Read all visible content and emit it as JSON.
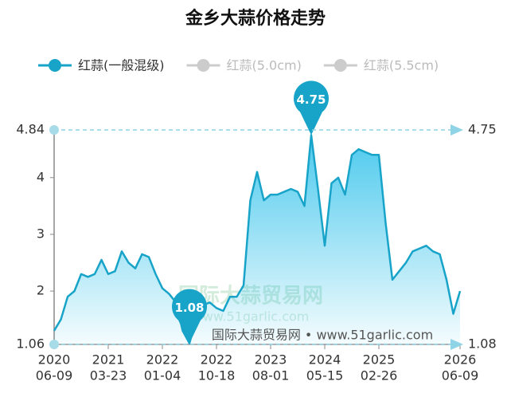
{
  "chart_data": {
    "type": "line",
    "title": "金乡大蒜价格走势",
    "categories": [
      [
        "2020",
        "06-09"
      ],
      null,
      null,
      null,
      null,
      null,
      null,
      null,
      [
        "2021",
        "03-23"
      ],
      null,
      null,
      null,
      null,
      null,
      null,
      null,
      [
        "2022",
        "01-04"
      ],
      null,
      null,
      null,
      null,
      null,
      null,
      null,
      [
        "2022",
        "10-18"
      ],
      null,
      null,
      null,
      null,
      null,
      null,
      null,
      [
        "2023",
        "08-01"
      ],
      null,
      null,
      null,
      null,
      null,
      null,
      null,
      [
        "2024",
        "05-15"
      ],
      null,
      null,
      null,
      null,
      null,
      null,
      null,
      [
        "2025",
        "02-26"
      ],
      null,
      null,
      null,
      null,
      null,
      null,
      null,
      null,
      null,
      null,
      null,
      [
        "2026",
        "06-09"
      ]
    ],
    "series": [
      {
        "name": "红蒜(一般混级)",
        "color": "#18a3c9",
        "visible": true,
        "values": [
          1.3,
          1.5,
          1.9,
          2.0,
          2.3,
          2.25,
          2.3,
          2.55,
          2.3,
          2.35,
          2.7,
          2.5,
          2.4,
          2.65,
          2.6,
          2.3,
          2.05,
          1.95,
          1.8,
          1.3,
          1.08,
          1.5,
          1.75,
          1.8,
          1.7,
          1.65,
          1.9,
          1.9,
          2.1,
          3.6,
          4.1,
          3.6,
          3.7,
          3.7,
          3.75,
          3.8,
          3.75,
          3.5,
          4.75,
          3.8,
          2.8,
          3.9,
          4.0,
          3.7,
          4.4,
          4.5,
          4.45,
          4.4,
          4.4,
          3.2,
          2.2,
          2.35,
          2.5,
          2.7,
          2.75,
          2.8,
          2.7,
          2.65,
          2.2,
          1.6,
          2.0
        ]
      },
      {
        "name": "红蒜(5.0cm)",
        "color": "#cccccc",
        "visible": false
      },
      {
        "name": "红蒜(5.5cm)",
        "color": "#cccccc",
        "visible": false
      }
    ],
    "ylim": [
      1.06,
      4.84
    ],
    "yticks": [
      1.06,
      2,
      3,
      4,
      4.84
    ],
    "annotations": {
      "max": 4.75,
      "min": 1.08
    },
    "logo_text": "国际大蒜贸易网",
    "logo_url": "www.51garlic.com",
    "watermark": "国际大蒜贸易网 • www.51garlic.com"
  }
}
